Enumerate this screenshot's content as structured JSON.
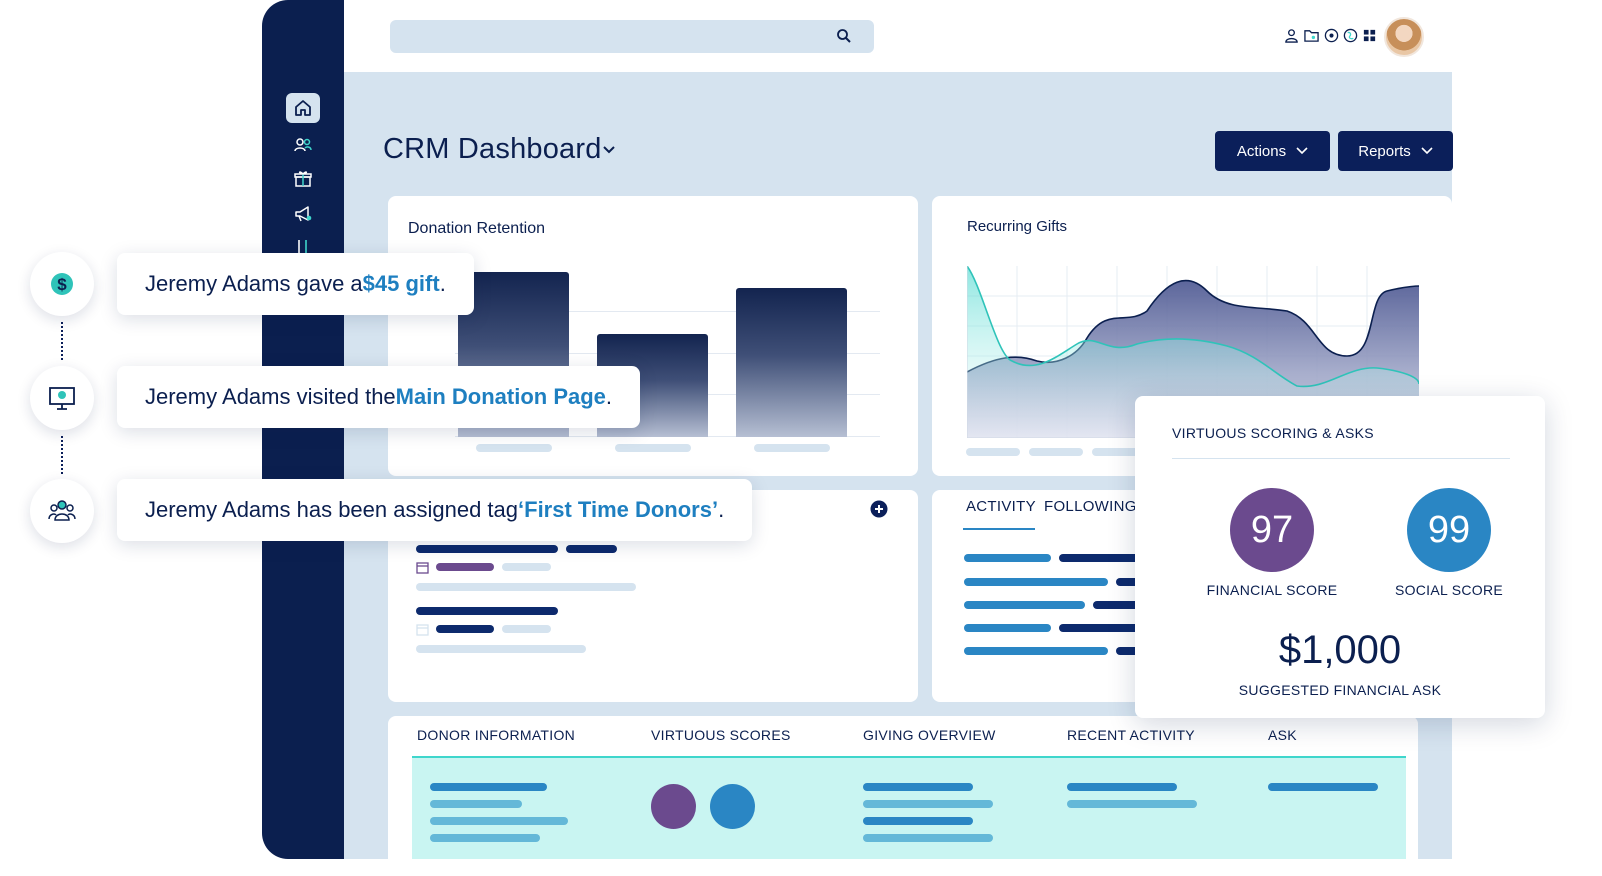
{
  "header": {
    "search": {
      "placeholder": ""
    },
    "icons": [
      "user-icon",
      "folder-icon",
      "target-icon",
      "globe-icon",
      "grid-icon"
    ]
  },
  "sidebar": {
    "items": [
      {
        "icon": "home-icon",
        "active": true
      },
      {
        "icon": "people-icon"
      },
      {
        "icon": "gift-icon"
      },
      {
        "icon": "megaphone-icon"
      },
      {
        "icon": "tools-icon"
      }
    ]
  },
  "page": {
    "title": "CRM Dashboard",
    "actions_label": "Actions",
    "reports_label": "Reports"
  },
  "donation_retention": {
    "title": "Donation Retention"
  },
  "recurring_gifts": {
    "title": "Recurring Gifts"
  },
  "activity_panel": {
    "tabs": [
      "ACTIVITY",
      "FOLLOWING"
    ]
  },
  "scoring": {
    "title": "VIRTUOUS SCORING & ASKS",
    "financial_score": "97",
    "financial_label": "FINANCIAL SCORE",
    "social_score": "99",
    "social_label": "SOCIAL SCORE",
    "ask_amount": "$1,000",
    "ask_label": "SUGGESTED FINANCIAL ASK",
    "colors": {
      "financial": "#6b4a8e",
      "social": "#2a86c4"
    }
  },
  "table": {
    "headers": [
      "DONOR INFORMATION",
      "VIRTUOUS SCORES",
      "GIVING OVERVIEW",
      "RECENT ACTIVITY",
      "ASK"
    ]
  },
  "notifications": [
    {
      "icon": "dollar-icon",
      "prefix": "Jeremy Adams gave a ",
      "highlight": "$45 gift",
      "suffix": "."
    },
    {
      "icon": "monitor-icon",
      "prefix": "Jeremy Adams visited the ",
      "highlight": "Main Donation Page",
      "suffix": "."
    },
    {
      "icon": "group-icon",
      "prefix": "Jeremy Adams has been assigned tag ",
      "highlight": "‘First Time Donors’",
      "suffix": "."
    }
  ],
  "colors": {
    "navy": "#0b1f4f",
    "accent_blue": "#1e7fc0",
    "teal": "#3fd6cc",
    "panel_bg": "#d5e3ef"
  }
}
